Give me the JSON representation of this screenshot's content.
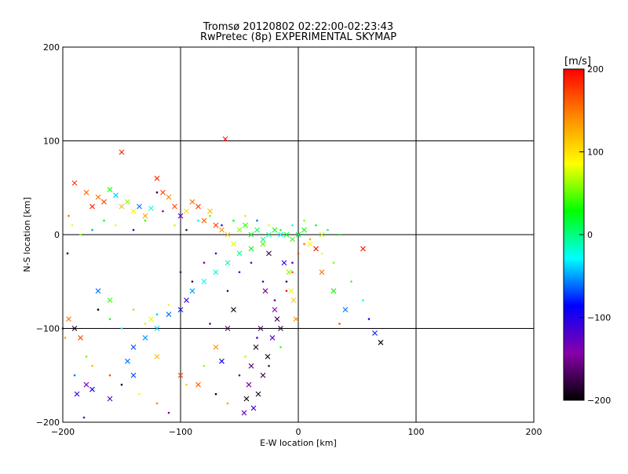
{
  "chart_data": {
    "type": "scatter",
    "title": "Tromsø 20120802 02:22:00-02:23:43",
    "subtitle": "RwPretec (8p) EXPERIMENTAL SKYMAP",
    "xlabel": "E-W location [km]",
    "ylabel": "N-S location [km]",
    "xlim": [
      -200,
      200
    ],
    "ylim": [
      -200,
      200
    ],
    "xticks": [
      "−200",
      "−100",
      "0",
      "100",
      "200"
    ],
    "yticks": [
      "−200",
      "−100",
      "0",
      "100",
      "200"
    ],
    "grid": true,
    "colorbar": {
      "label": "[m/s]",
      "range": [
        -200,
        200
      ],
      "ticks": [
        "200",
        "100",
        "0",
        "−100",
        "−200"
      ],
      "colors": [
        "#000000",
        "#8800aa",
        "#0000ff",
        "#00ffff",
        "#00ff00",
        "#ffff00",
        "#ff8800",
        "#ff0000"
      ]
    },
    "series": [
      {
        "marker": "cross",
        "points": [
          [
            -190,
            55,
            180
          ],
          [
            -180,
            45,
            160
          ],
          [
            -175,
            30,
            190
          ],
          [
            -170,
            40,
            150
          ],
          [
            -165,
            35,
            170
          ],
          [
            -160,
            48,
            30
          ],
          [
            -155,
            42,
            -40
          ],
          [
            -150,
            30,
            120
          ],
          [
            -145,
            35,
            60
          ],
          [
            -140,
            25,
            90
          ],
          [
            -135,
            30,
            -60
          ],
          [
            -130,
            20,
            130
          ],
          [
            -125,
            28,
            -20
          ],
          [
            -120,
            60,
            185
          ],
          [
            -115,
            45,
            175
          ],
          [
            -110,
            40,
            140
          ],
          [
            -105,
            30,
            170
          ],
          [
            -100,
            20,
            -120
          ],
          [
            -95,
            25,
            100
          ],
          [
            -90,
            35,
            150
          ],
          [
            -85,
            30,
            180
          ],
          [
            -80,
            15,
            160
          ],
          [
            -75,
            25,
            120
          ],
          [
            -70,
            10,
            170
          ],
          [
            -65,
            5,
            140
          ],
          [
            -60,
            0,
            110
          ],
          [
            -55,
            -10,
            80
          ],
          [
            -50,
            5,
            60
          ],
          [
            -45,
            10,
            40
          ],
          [
            -40,
            0,
            20
          ],
          [
            -35,
            5,
            10
          ],
          [
            -30,
            -5,
            0
          ],
          [
            -25,
            0,
            -10
          ],
          [
            -20,
            5,
            30
          ],
          [
            -15,
            0,
            -30
          ],
          [
            -10,
            0,
            20
          ],
          [
            -5,
            -5,
            40
          ],
          [
            0,
            0,
            10
          ],
          [
            5,
            5,
            30
          ],
          [
            10,
            -10,
            90
          ],
          [
            15,
            -15,
            190
          ],
          [
            20,
            0,
            70
          ],
          [
            -62,
            102,
            190
          ],
          [
            -150,
            88,
            190
          ],
          [
            -180,
            -160,
            -140
          ],
          [
            -175,
            -165,
            -90
          ],
          [
            -160,
            -175,
            -120
          ],
          [
            -145,
            -135,
            -60
          ],
          [
            -140,
            -150,
            -70
          ],
          [
            -130,
            -110,
            -50
          ],
          [
            -125,
            -90,
            80
          ],
          [
            -120,
            -100,
            -40
          ],
          [
            -110,
            -85,
            -60
          ],
          [
            -100,
            -80,
            -80
          ],
          [
            -95,
            -70,
            -100
          ],
          [
            -90,
            -60,
            -50
          ],
          [
            -80,
            -50,
            -30
          ],
          [
            -70,
            -40,
            -20
          ],
          [
            -60,
            -30,
            -10
          ],
          [
            -50,
            -20,
            0
          ],
          [
            -40,
            -15,
            20
          ],
          [
            -30,
            -10,
            50
          ],
          [
            -25,
            -20,
            -180
          ],
          [
            -28,
            -60,
            -150
          ],
          [
            -32,
            -100,
            -170
          ],
          [
            -36,
            -120,
            -190
          ],
          [
            -40,
            -140,
            -160
          ],
          [
            -42,
            -160,
            -150
          ],
          [
            -44,
            -175,
            -200
          ],
          [
            -46,
            -190,
            -130
          ],
          [
            -20,
            -80,
            -140
          ],
          [
            -22,
            -110,
            -120
          ],
          [
            -26,
            -130,
            -200
          ],
          [
            -30,
            -150,
            -180
          ],
          [
            -34,
            -170,
            -190
          ],
          [
            -38,
            -185,
            -110
          ],
          [
            -8,
            -40,
            60
          ],
          [
            -6,
            -60,
            80
          ],
          [
            -4,
            -70,
            110
          ],
          [
            -2,
            -90,
            140
          ],
          [
            -12,
            -30,
            -100
          ],
          [
            55,
            -15,
            190
          ],
          [
            70,
            -115,
            -200
          ],
          [
            65,
            -105,
            -80
          ],
          [
            40,
            -80,
            -60
          ],
          [
            30,
            -60,
            30
          ],
          [
            20,
            -40,
            150
          ],
          [
            -100,
            -150,
            170
          ],
          [
            -85,
            -160,
            160
          ],
          [
            -70,
            -120,
            140
          ],
          [
            -60,
            -100,
            -170
          ],
          [
            -55,
            -80,
            -200
          ],
          [
            -15,
            -100,
            -180
          ],
          [
            -18,
            -90,
            -170
          ],
          [
            -65,
            -135,
            -90
          ],
          [
            -120,
            -130,
            120
          ],
          [
            -190,
            -100,
            -190
          ],
          [
            -195,
            -90,
            150
          ],
          [
            -188,
            -170,
            -100
          ],
          [
            -185,
            -110,
            170
          ],
          [
            -140,
            -120,
            -70
          ],
          [
            -170,
            -60,
            -60
          ],
          [
            -160,
            -70,
            40
          ]
        ]
      },
      {
        "marker": "dot",
        "points": [
          [
            -195,
            20,
            150
          ],
          [
            -192,
            10,
            90
          ],
          [
            -185,
            0,
            60
          ],
          [
            -175,
            5,
            -50
          ],
          [
            -165,
            15,
            20
          ],
          [
            -155,
            10,
            80
          ],
          [
            -140,
            5,
            -90
          ],
          [
            -130,
            15,
            40
          ],
          [
            -115,
            25,
            -140
          ],
          [
            -105,
            10,
            70
          ],
          [
            -95,
            5,
            -170
          ],
          [
            -85,
            15,
            -30
          ],
          [
            -75,
            20,
            50
          ],
          [
            -65,
            10,
            -80
          ],
          [
            -55,
            15,
            30
          ],
          [
            -45,
            20,
            100
          ],
          [
            -35,
            15,
            -60
          ],
          [
            -25,
            10,
            80
          ],
          [
            -15,
            5,
            40
          ],
          [
            -5,
            10,
            -20
          ],
          [
            5,
            15,
            60
          ],
          [
            15,
            10,
            20
          ],
          [
            25,
            5,
            10
          ],
          [
            35,
            0,
            30
          ],
          [
            -100,
            -40,
            -170
          ],
          [
            -90,
            -50,
            -190
          ],
          [
            -80,
            -30,
            -140
          ],
          [
            -70,
            -20,
            -100
          ],
          [
            -60,
            -60,
            -160
          ],
          [
            -50,
            -40,
            -80
          ],
          [
            -40,
            -30,
            -130
          ],
          [
            -30,
            -50,
            -100
          ],
          [
            -20,
            -70,
            -160
          ],
          [
            -10,
            -50,
            -180
          ],
          [
            -5,
            -30,
            -120
          ],
          [
            -170,
            -80,
            -200
          ],
          [
            -160,
            -90,
            20
          ],
          [
            -150,
            -100,
            -30
          ],
          [
            -140,
            -80,
            60
          ],
          [
            -130,
            -95,
            100
          ],
          [
            -120,
            -85,
            -40
          ],
          [
            -110,
            -75,
            80
          ],
          [
            -200,
            -100,
            -150
          ],
          [
            -198,
            -110,
            130
          ],
          [
            -196,
            -20,
            -200
          ],
          [
            -180,
            -130,
            50
          ],
          [
            -175,
            -140,
            120
          ],
          [
            -160,
            -150,
            170
          ],
          [
            -150,
            -160,
            -190
          ],
          [
            -135,
            -170,
            90
          ],
          [
            -120,
            -180,
            140
          ],
          [
            -110,
            -190,
            -150
          ],
          [
            -95,
            -160,
            110
          ],
          [
            -80,
            -140,
            60
          ],
          [
            -70,
            -170,
            -200
          ],
          [
            -60,
            -180,
            130
          ],
          [
            -50,
            -150,
            -160
          ],
          [
            -45,
            -130,
            70
          ],
          [
            -35,
            -110,
            -110
          ],
          [
            -25,
            -140,
            -170
          ],
          [
            -15,
            -120,
            40
          ],
          [
            -10,
            -60,
            190
          ],
          [
            -5,
            -40,
            170
          ],
          [
            0,
            -20,
            180
          ],
          [
            5,
            -10,
            150
          ],
          [
            10,
            -5,
            130
          ],
          [
            20,
            -20,
            90
          ],
          [
            30,
            -30,
            60
          ],
          [
            45,
            -50,
            40
          ],
          [
            55,
            -70,
            -20
          ],
          [
            60,
            -90,
            -90
          ],
          [
            35,
            -95,
            170
          ],
          [
            -75,
            -95,
            -160
          ],
          [
            -120,
            45,
            -180
          ],
          [
            -190,
            -150,
            -60
          ],
          [
            -182,
            -195,
            -110
          ]
        ]
      }
    ]
  }
}
